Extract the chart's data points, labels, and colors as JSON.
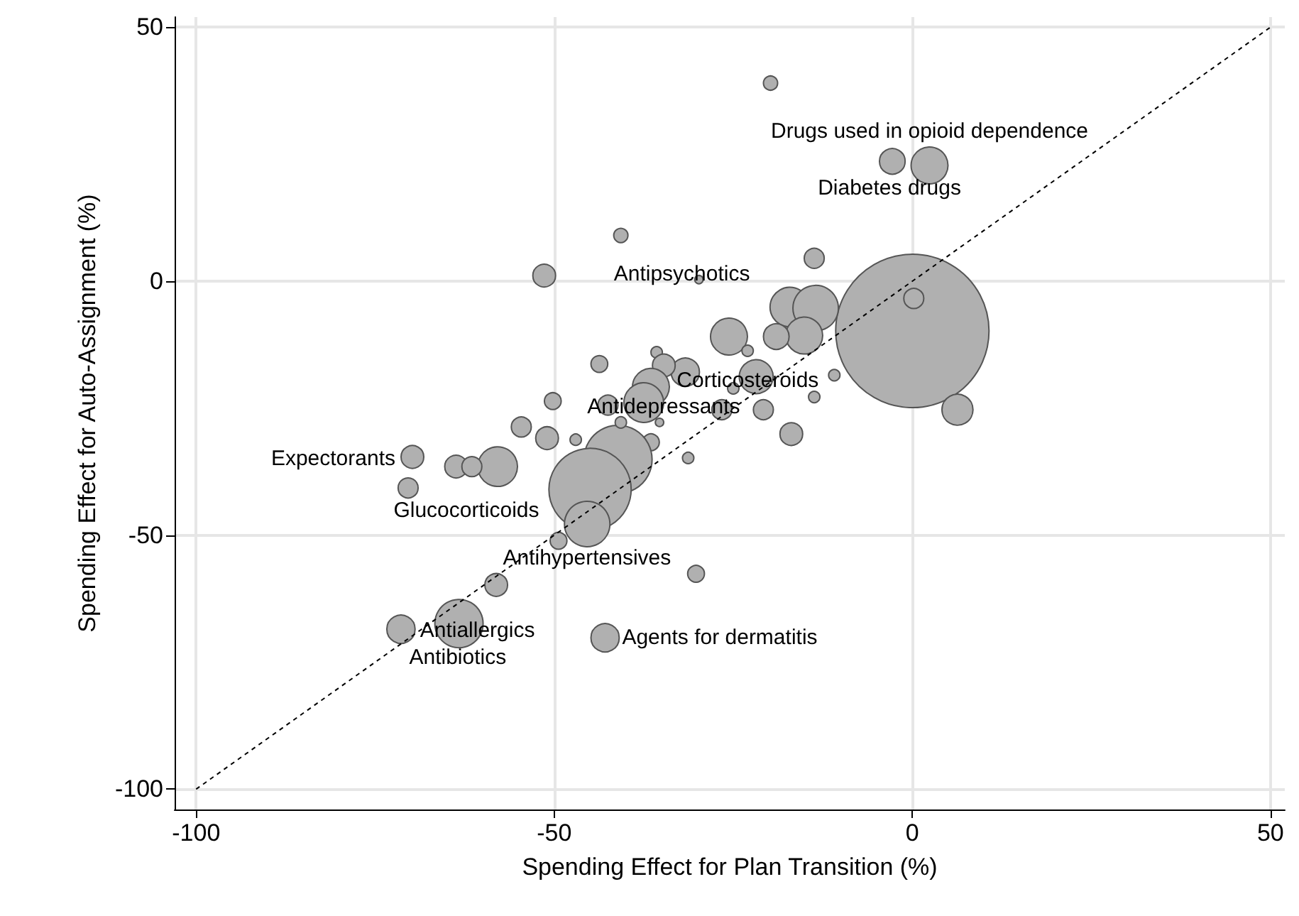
{
  "chart_data": {
    "type": "bubble",
    "xlabel": "Spending Effect for Plan Transition (%)",
    "ylabel": "Spending Effect for Auto-Assignment (%)",
    "xlim": [
      -103,
      52
    ],
    "ylim": [
      -104,
      52
    ],
    "xticks": [
      -100,
      -50,
      0,
      50
    ],
    "yticks": [
      -100,
      -50,
      0,
      50
    ],
    "grid": true,
    "series": [
      {
        "color": "#b0b0b0",
        "x": [
          -19.8,
          -2.8,
          2.4,
          -40.7,
          -13.7,
          -29.8,
          -51.4,
          0,
          0.2,
          -17.1,
          -13.5,
          -15.1,
          -19.0,
          -25.6,
          -23.0,
          -35.7,
          -43.7,
          -31.7,
          -34.7,
          -21.8,
          -10.9,
          -25.0,
          -36.5,
          -37.5,
          -13.7,
          -50.2,
          -42.5,
          -26.6,
          -20.8,
          -35.3,
          6.3,
          -54.6,
          -16.9,
          -51.0,
          -47.0,
          -36.5,
          -31.3,
          -41.1,
          -57.9,
          -45.0,
          -45.4,
          -49.4,
          -69.8,
          -63.7,
          -61.5,
          -70.4,
          -58.1,
          -30.2,
          -63.3,
          -71.4,
          -42.9,
          -40.7
        ],
        "values": [
          39.0,
          23.6,
          22.8,
          9.0,
          4.5,
          0.3,
          1.1,
          -9.8,
          -3.4,
          -5.1,
          -5.3,
          -10.7,
          -10.9,
          -10.9,
          -13.7,
          -14.0,
          -16.3,
          -17.9,
          -16.6,
          -18.8,
          -18.5,
          -21.1,
          -20.8,
          -23.9,
          -22.8,
          -23.6,
          -24.4,
          -25.3,
          -25.3,
          -27.8,
          -25.3,
          -28.7,
          -30.1,
          -30.9,
          -31.2,
          -31.7,
          -34.8,
          -35.1,
          -36.5,
          -41.0,
          -47.8,
          -51.1,
          -34.6,
          -36.5,
          -36.5,
          -40.7,
          -59.8,
          -57.6,
          -67.4,
          -68.5,
          -70.2,
          -27.8
        ],
        "sizes": [
          0.0086,
          0.028,
          0.058,
          0.0086,
          0.017,
          0.003,
          0.022,
          1,
          0.017,
          0.067,
          0.088,
          0.058,
          0.028,
          0.058,
          0.0055,
          0.0055,
          0.012,
          0.034,
          0.022,
          0.049,
          0.0055,
          0.0055,
          0.058,
          0.067,
          0.0055,
          0.012,
          0.017,
          0.017,
          0.017,
          0.003,
          0.041,
          0.017,
          0.022,
          0.022,
          0.0055,
          0.012,
          0.0055,
          0.198,
          0.067,
          0.288,
          0.088,
          0.012,
          0.022,
          0.022,
          0.017,
          0.017,
          0.022,
          0.012,
          0.099,
          0.034,
          0.034,
          0.0055
        ]
      },
      {
        "type": "line",
        "color": "#000000",
        "x": [
          -100,
          50
        ],
        "values": [
          -100,
          50
        ],
        "line_style": "dashed",
        "marker": "none"
      }
    ],
    "annotations": [
      {
        "text": "Drugs used in opioid dependence",
        "x": 2.4,
        "y": 22.8
      },
      {
        "text": "Diabetes drugs",
        "x": -2.8,
        "y": 23.6
      },
      {
        "text": "Antipsychotics",
        "x": -29.8,
        "y": 0.3
      },
      {
        "text": "Corticosteroids",
        "x": -21.8,
        "y": -18.8
      },
      {
        "text": "Antidepressants",
        "x": -37.5,
        "y": -23.9
      },
      {
        "text": "Expectorants",
        "x": -69.8,
        "y": -34.6
      },
      {
        "text": "Glucocorticoids",
        "x": -70.4,
        "y": -40.7
      },
      {
        "text": "Antihypertensives",
        "x": -49.4,
        "y": -51.1
      },
      {
        "text": "Antiallergics",
        "x": -63.3,
        "y": -67.4
      },
      {
        "text": "Antibiotics",
        "x": -71.4,
        "y": -68.5
      },
      {
        "text": "Agents for dermatitis",
        "x": -42.9,
        "y": -70.2
      }
    ]
  }
}
